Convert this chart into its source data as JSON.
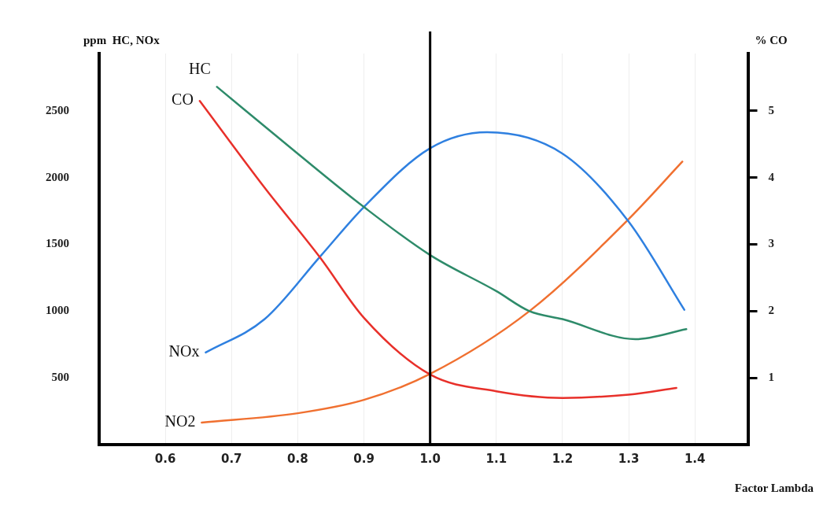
{
  "chart_data": {
    "type": "line",
    "xlabel": "Factor Lambda",
    "ylabel": "ppm  HC, NOx",
    "y2label": "% CO",
    "xlim": [
      0.5,
      1.48
    ],
    "xticks": [
      {
        "value": 0.6,
        "label": "0.6"
      },
      {
        "value": 0.7,
        "label": "0.7"
      },
      {
        "value": 0.8,
        "label": "0.8"
      },
      {
        "value": 0.9,
        "label": "0.9"
      },
      {
        "value": 1.0,
        "label": "1.0"
      },
      {
        "value": 1.1,
        "label": "1.1"
      },
      {
        "value": 1.2,
        "label": "1.2"
      },
      {
        "value": 1.3,
        "label": "1.3"
      },
      {
        "value": 1.4,
        "label": "1.4"
      }
    ],
    "ylim": [
      0,
      2930
    ],
    "yticks": [
      500,
      1000,
      1500,
      2000,
      2500
    ],
    "y2lim": [
      0,
      5.86
    ],
    "y2ticks": [
      1,
      2,
      3,
      4,
      5
    ],
    "grid": "x",
    "legend": false,
    "marker": "none",
    "line_style": "solid",
    "ref_lines": [
      {
        "axis": "x",
        "value": 1.0,
        "label": null,
        "color": "#000000"
      }
    ],
    "series": [
      {
        "name": "HC",
        "color": "#2e8b6a",
        "x": [
          0.678,
          0.8,
          0.9,
          1.0,
          1.1,
          1.15,
          1.2,
          1.31,
          1.387
        ],
        "values": [
          2680,
          2180,
          1780,
          1420,
          1150,
          1000,
          940,
          790,
          865
        ]
      },
      {
        "name": "CO",
        "color": "#e8302a",
        "axis": "y2",
        "x": [
          0.652,
          0.75,
          0.834,
          0.9,
          1.0,
          1.1,
          1.2,
          1.3,
          1.372
        ],
        "values": [
          5.15,
          3.85,
          2.8,
          1.9,
          1.05,
          0.8,
          0.7,
          0.75,
          0.85
        ]
      },
      {
        "name": "NOx",
        "color": "#2f80e0",
        "x": [
          0.661,
          0.75,
          0.834,
          0.9,
          1.0,
          1.086,
          1.2,
          1.3,
          1.384
        ],
        "values": [
          690,
          940,
          1410,
          1780,
          2220,
          2340,
          2180,
          1670,
          1010
        ]
      },
      {
        "name": "NO2",
        "color": "#f07030",
        "x": [
          0.655,
          0.8,
          0.9,
          1.0,
          1.15,
          1.3,
          1.381
        ],
        "values": [
          165,
          235,
          335,
          530,
          1000,
          1690,
          2120
        ]
      }
    ]
  }
}
